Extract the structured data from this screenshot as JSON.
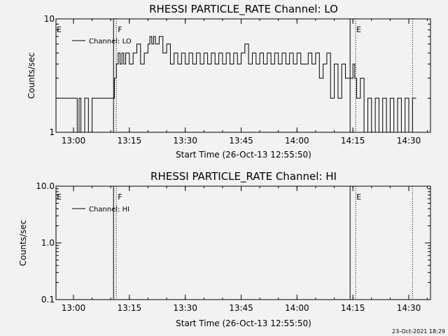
{
  "chart_data": [
    {
      "type": "line",
      "title": "RHESSI PARTICLE_RATE Channel: LO",
      "xlabel": "Start Time (26-Oct-13 12:55:50)",
      "ylabel": "Counts/sec",
      "yscale": "log",
      "ylim": [
        1,
        10
      ],
      "y_ticks": [
        "1",
        "10"
      ],
      "x_ticks": [
        "13:00",
        "13:15",
        "13:30",
        "13:45",
        "14:00",
        "14:15",
        "14:30"
      ],
      "legend": "Channel: LO",
      "legend_position": "top-left",
      "region_labels": [
        {
          "label": "E",
          "time": "12:55:50"
        },
        {
          "label": "F",
          "time": "13:11:00"
        },
        {
          "label": "E",
          "time": "14:16:00"
        }
      ],
      "series": [
        {
          "name": "Channel: LO",
          "x": [
            "12:55:50",
            "13:00:30",
            "13:01:00",
            "13:01:30",
            "13:02:00",
            "13:03:00",
            "13:04:00",
            "13:05:00",
            "13:06:00",
            "13:07:00",
            "13:08:00",
            "13:10:30",
            "13:11:00",
            "13:11:30",
            "13:12:00",
            "13:12:30",
            "13:13:00",
            "13:13:30",
            "13:14:00",
            "13:15:00",
            "13:16:00",
            "13:17:00",
            "13:18:00",
            "13:19:00",
            "13:20:00",
            "13:20:30",
            "13:21:00",
            "13:21:30",
            "13:22:00",
            "13:23:00",
            "13:24:00",
            "13:25:00",
            "13:26:00",
            "13:27:00",
            "13:28:00",
            "13:29:00",
            "13:30:00",
            "13:31:00",
            "13:32:00",
            "13:33:00",
            "13:34:00",
            "13:35:00",
            "13:36:00",
            "13:37:00",
            "13:38:00",
            "13:39:00",
            "13:40:00",
            "13:41:00",
            "13:42:00",
            "13:43:00",
            "13:44:00",
            "13:45:00",
            "13:46:00",
            "13:47:00",
            "13:48:00",
            "13:49:00",
            "13:50:00",
            "13:51:00",
            "13:52:00",
            "13:53:00",
            "13:54:00",
            "13:55:00",
            "13:56:00",
            "13:57:00",
            "13:58:00",
            "13:59:00",
            "14:00:00",
            "14:01:00",
            "14:02:00",
            "14:03:00",
            "14:04:00",
            "14:05:00",
            "14:06:00",
            "14:07:00",
            "14:08:00",
            "14:09:00",
            "14:10:00",
            "14:11:00",
            "14:12:00",
            "14:13:00",
            "14:14:00",
            "14:15:00",
            "14:15:30",
            "14:16:00",
            "14:17:00",
            "14:18:00",
            "14:19:00",
            "14:20:00",
            "14:21:00",
            "14:22:00",
            "14:23:00",
            "14:24:00",
            "14:25:00",
            "14:26:00",
            "14:27:00",
            "14:28:00",
            "14:29:00",
            "14:30:00",
            "14:31:00",
            "14:32:00"
          ],
          "values": [
            2,
            2,
            1,
            2,
            1,
            2,
            1,
            2,
            2,
            2,
            2,
            2,
            3,
            4,
            5,
            4,
            5,
            4,
            5,
            4,
            5,
            6,
            4,
            5,
            6,
            7,
            6,
            7,
            6,
            7,
            5,
            6,
            4,
            5,
            4,
            5,
            4,
            5,
            4,
            5,
            4,
            5,
            4,
            5,
            4,
            5,
            4,
            5,
            4,
            5,
            4,
            5,
            6,
            4,
            5,
            4,
            5,
            4,
            5,
            4,
            5,
            4,
            5,
            4,
            5,
            4,
            5,
            4,
            4,
            5,
            4,
            5,
            3,
            4,
            5,
            2,
            4,
            2,
            4,
            3,
            3,
            4,
            3,
            2,
            3,
            1,
            2,
            1,
            2,
            1,
            2,
            1,
            2,
            1,
            2,
            1,
            2,
            1,
            2,
            2
          ]
        }
      ]
    },
    {
      "type": "line",
      "title": "RHESSI PARTICLE_RATE Channel: HI",
      "xlabel": "Start Time (26-Oct-13 12:55:50)",
      "ylabel": "Counts/sec",
      "yscale": "log",
      "ylim": [
        0.1,
        10
      ],
      "y_ticks": [
        "0.1",
        "1.0",
        "10.0"
      ],
      "x_ticks": [
        "13:00",
        "13:15",
        "13:30",
        "13:45",
        "14:00",
        "14:15",
        "14:30"
      ],
      "legend": "Channel: HI",
      "legend_position": "top-left",
      "region_labels": [
        {
          "label": "E",
          "time": "12:55:50"
        },
        {
          "label": "F",
          "time": "13:11:00"
        },
        {
          "label": "E",
          "time": "14:16:00"
        }
      ],
      "series": [
        {
          "name": "Channel: HI",
          "x": [],
          "values": []
        }
      ]
    }
  ],
  "footer": {
    "timestamp": "23-Oct-2021 18:29"
  }
}
